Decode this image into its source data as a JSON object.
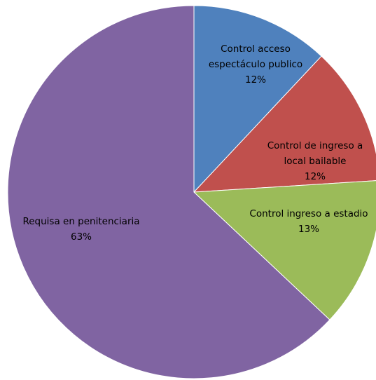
{
  "chart_data": {
    "type": "pie",
    "categories": [
      "Control acceso espectáculo publico",
      "Control de ingreso a local bailable",
      "Control ingreso a estadio",
      "Requisa en penitenciaria"
    ],
    "values": [
      12,
      12,
      13,
      63
    ],
    "value_labels": [
      "12%",
      "12%",
      "13%",
      "63%"
    ],
    "colors": [
      "#4f81bd",
      "#c0504d",
      "#9bbb59",
      "#8064a2"
    ]
  }
}
